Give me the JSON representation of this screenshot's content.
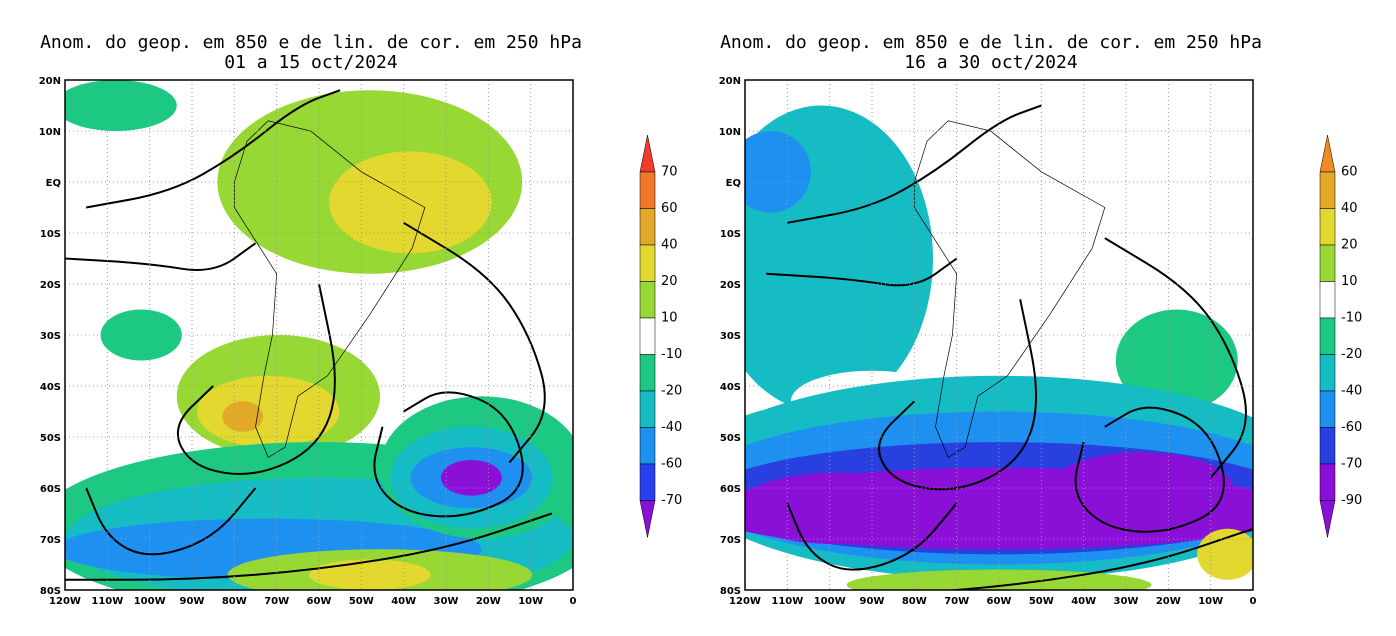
{
  "maps": [
    {
      "title": "Anom. do geop. em 850 e de lin. de cor. em 250 hPa",
      "subtitle": "01 a 15 oct/2024",
      "lon_labels": [
        "120W",
        "110W",
        "100W",
        "90W",
        "80W",
        "70W",
        "60W",
        "50W",
        "40W",
        "30W",
        "20W",
        "10W",
        "0"
      ],
      "lat_labels": [
        "20N",
        "10N",
        "EQ",
        "10S",
        "20S",
        "30S",
        "40S",
        "50S",
        "60S",
        "70S",
        "80S"
      ],
      "colorbar": {
        "labels": [
          "70",
          "60",
          "40",
          "20",
          "10",
          "-10",
          "-20",
          "-40",
          "-60",
          "-70"
        ],
        "colors": [
          "#f03a2a",
          "#f07828",
          "#e2a828",
          "#e2d830",
          "#98d834",
          "#ffffff",
          "#1cc882",
          "#16bcc4",
          "#1e90f0",
          "#2840f0",
          "#8a10d8"
        ]
      }
    },
    {
      "title": "Anom. do geop. em 850 e de lin. de cor. em 250 hPa",
      "subtitle": "16 a 30 oct/2024",
      "lon_labels": [
        "120W",
        "110W",
        "100W",
        "90W",
        "80W",
        "70W",
        "60W",
        "50W",
        "40W",
        "30W",
        "20W",
        "10W",
        "0"
      ],
      "lat_labels": [
        "20N",
        "10N",
        "EQ",
        "10S",
        "20S",
        "30S",
        "40S",
        "50S",
        "60S",
        "70S",
        "80S"
      ],
      "colorbar": {
        "labels": [
          "60",
          "40",
          "20",
          "10",
          "-10",
          "-20",
          "-40",
          "-60",
          "-70",
          "-90"
        ],
        "colors": [
          "#f08a28",
          "#e2a828",
          "#e2d830",
          "#98d834",
          "#ffffff",
          "#1cc882",
          "#16bcc4",
          "#1e90f0",
          "#2840e0",
          "#8a10d8",
          "#8a10d8"
        ]
      }
    }
  ]
}
